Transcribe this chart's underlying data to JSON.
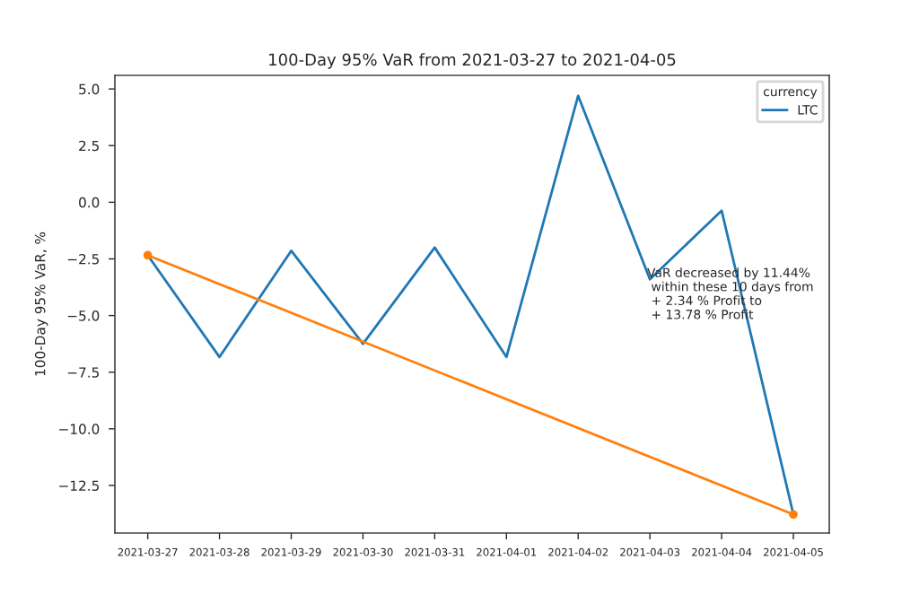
{
  "chart_data": {
    "type": "line",
    "title": "100-Day 95% VaR from 2021-03-27 to 2021-04-05",
    "ylabel": "100-Day 95% VaR, %",
    "legend_title": "currency",
    "legend": "top right",
    "x": [
      "2021-03-27",
      "2021-03-28",
      "2021-03-29",
      "2021-03-30",
      "2021-03-31",
      "2021-04-01",
      "2021-04-02",
      "2021-04-03",
      "2021-04-04",
      "2021-04-05"
    ],
    "series": [
      {
        "name": "LTC",
        "color": "#1f77b4",
        "marker": "none",
        "values": [
          -2.34,
          -6.83,
          -2.14,
          -6.25,
          -2.0,
          -6.83,
          4.7,
          -3.4,
          -0.37,
          -13.78
        ]
      },
      {
        "color": "#ff7f0e",
        "marker": "circle",
        "x": [
          "2021-03-27",
          "2021-04-05"
        ],
        "values": [
          -2.34,
          -13.78
        ]
      }
    ],
    "xlim": [
      "2021-03-26T13:00",
      "2021-04-05T12:00"
    ],
    "xticks": [
      "2021-03-27",
      "2021-03-28",
      "2021-03-29",
      "2021-03-30",
      "2021-03-31",
      "2021-04-01",
      "2021-04-02",
      "2021-04-03",
      "2021-04-04",
      "2021-04-05"
    ],
    "ylim": [
      -14.6,
      5.6
    ],
    "yticks": [
      -12.5,
      {
        "value": -10,
        "label": "−10.0"
      },
      -7.5,
      {
        "value": -5,
        "label": "−5.0"
      },
      -2.5,
      {
        "value": 0,
        "label": "0.0"
      },
      2.5,
      {
        "value": 5,
        "label": "5.0"
      }
    ],
    "grid": false,
    "annotations": [
      "VaR decreased by 11.44%\n within these 10 days from\n + 2.34 % Profit to\n + 13.78 % Profit"
    ]
  }
}
